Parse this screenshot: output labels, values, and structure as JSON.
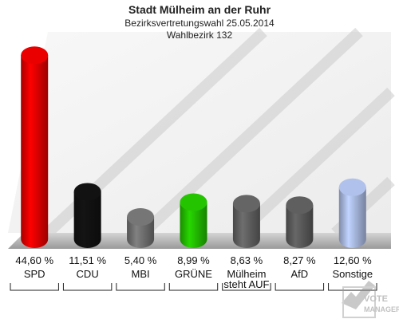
{
  "chart_data": {
    "type": "bar",
    "title": "Stadt Mülheim an der Ruhr",
    "subtitle": "Bezirksvertretungswahl 25.05.2014",
    "subtitle2": "Wahlbezirk 132",
    "categories": [
      "SPD",
      "CDU",
      "MBI",
      "GRÜNE",
      "Mülheim steht AUF",
      "AfD",
      "Sonstige"
    ],
    "values": [
      44.6,
      11.51,
      5.4,
      8.99,
      8.63,
      8.27,
      12.6
    ],
    "value_labels": [
      "44,60 %",
      "11,51 %",
      "5,40 %",
      "8,99 %",
      "8,63 %",
      "8,27 %",
      "12,60 %"
    ],
    "colors": [
      "#e00000",
      "#111111",
      "#707070",
      "#22bb00",
      "#606060",
      "#5a5a5a",
      "#a8b8e0"
    ],
    "ylim": [
      0,
      46
    ],
    "grid": false,
    "legend": "none"
  },
  "watermark": {
    "text": "VOTE MANAGER",
    "icon": "checkmark-logo-icon"
  }
}
